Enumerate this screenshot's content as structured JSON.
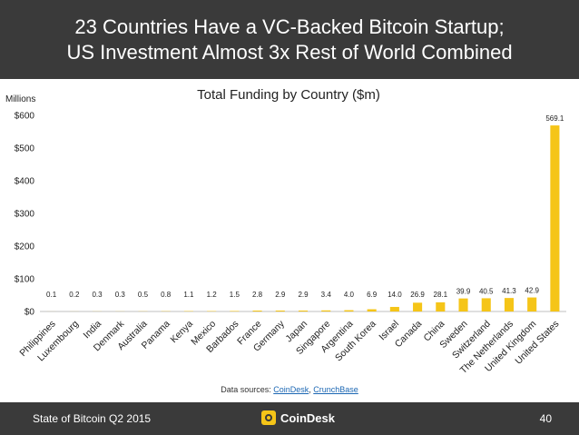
{
  "header": {
    "line1": "23 Countries Have a VC-Backed Bitcoin Startup;",
    "line2": "US Investment Almost 3x Rest of World Combined"
  },
  "chart_data": {
    "type": "bar",
    "title": "Total Funding by Country ($m)",
    "ylabel": "Millions",
    "xlabel": "",
    "ylim": [
      0,
      600
    ],
    "yticks": [
      0,
      100,
      200,
      300,
      400,
      500,
      600
    ],
    "ytick_labels": [
      "$0",
      "$100",
      "$200",
      "$300",
      "$400",
      "$500",
      "$600"
    ],
    "categories": [
      "Philippines",
      "Luxembourg",
      "India",
      "Denmark",
      "Australia",
      "Panama",
      "Kenya",
      "Mexico",
      "Barbados",
      "France",
      "Germany",
      "Japan",
      "Singapore",
      "Argentina",
      "South Korea",
      "Israel",
      "Canada",
      "China",
      "Sweden",
      "Switzerland",
      "The Netherlands",
      "United Kingdom",
      "United States"
    ],
    "values": [
      0.1,
      0.2,
      0.3,
      0.3,
      0.5,
      0.8,
      1.1,
      1.2,
      1.5,
      2.8,
      2.9,
      2.9,
      3.4,
      4.0,
      6.9,
      14.0,
      26.9,
      28.1,
      39.9,
      40.5,
      41.3,
      42.9,
      569.1
    ],
    "value_labels": [
      "0.1",
      "0.2",
      "0.3",
      "0.3",
      "0.5",
      "0.8",
      "1.1",
      "1.2",
      "1.5",
      "2.8",
      "2.9",
      "2.9",
      "3.4",
      "4.0",
      "6.9",
      "14.0",
      "26.9",
      "28.1",
      "39.9",
      "40.5",
      "41.3",
      "42.9",
      "569.1"
    ],
    "bar_color": "#f5c518",
    "grid": false,
    "legend": "none"
  },
  "sources": {
    "prefix": "Data sources: ",
    "link1": "CoinDesk",
    "separator": ", ",
    "link2": "CrunchBase"
  },
  "footer": {
    "left": "State of Bitcoin Q2 2015",
    "logo_text": "CoinDesk",
    "page_number": "40"
  },
  "colors": {
    "header_bg": "#3a3a3a",
    "accent": "#f5c518",
    "link": "#1a66b3"
  }
}
